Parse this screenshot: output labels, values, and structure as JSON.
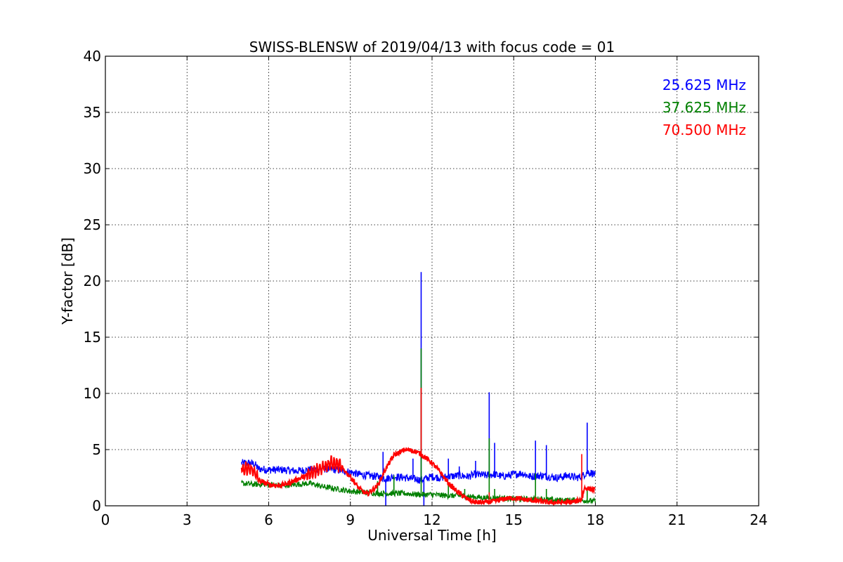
{
  "chart_data": {
    "type": "line",
    "title": "SWISS-BLENSW of 2019/04/13 with focus code = 01",
    "xlabel": "Universal Time [h]",
    "ylabel": "Y-factor [dB]",
    "xlim": [
      0,
      24
    ],
    "ylim": [
      0,
      40
    ],
    "xticks": [
      0,
      3,
      6,
      9,
      12,
      15,
      18,
      21,
      24
    ],
    "yticks": [
      0,
      5,
      10,
      15,
      20,
      25,
      30,
      35,
      40
    ],
    "grid": true,
    "legend_position": "top-right",
    "series": [
      {
        "name": "25.625 MHz",
        "color": "#0000ff",
        "points": [
          [
            5.0,
            3.8
          ],
          [
            5.3,
            3.8
          ],
          [
            5.5,
            3.7
          ],
          [
            5.6,
            3.3
          ],
          [
            6.0,
            3.2
          ],
          [
            6.5,
            3.2
          ],
          [
            7.0,
            3.1
          ],
          [
            7.5,
            3.2
          ],
          [
            8.0,
            3.3
          ],
          [
            8.5,
            3.2
          ],
          [
            9.0,
            3.0
          ],
          [
            9.3,
            2.8
          ],
          [
            9.6,
            2.7
          ],
          [
            10.0,
            2.6
          ],
          [
            10.3,
            2.4
          ],
          [
            10.6,
            2.6
          ],
          [
            11.0,
            2.5
          ],
          [
            11.3,
            2.4
          ],
          [
            11.6,
            2.3
          ],
          [
            12.0,
            2.6
          ],
          [
            12.3,
            2.5
          ],
          [
            12.6,
            2.6
          ],
          [
            13.0,
            2.7
          ],
          [
            13.3,
            2.6
          ],
          [
            13.6,
            2.8
          ],
          [
            14.0,
            2.7
          ],
          [
            14.3,
            2.8
          ],
          [
            14.6,
            2.6
          ],
          [
            15.0,
            2.8
          ],
          [
            15.3,
            2.9
          ],
          [
            15.6,
            2.6
          ],
          [
            16.0,
            2.7
          ],
          [
            16.3,
            2.6
          ],
          [
            16.6,
            2.5
          ],
          [
            17.0,
            2.7
          ],
          [
            17.3,
            2.5
          ],
          [
            17.5,
            2.6
          ],
          [
            17.7,
            3.0
          ],
          [
            17.9,
            2.9
          ],
          [
            18.0,
            2.7
          ]
        ],
        "spikes": [
          [
            10.2,
            4.8
          ],
          [
            10.3,
            0.0
          ],
          [
            11.3,
            4.2
          ],
          [
            11.6,
            20.8
          ],
          [
            11.7,
            0.0
          ],
          [
            12.6,
            4.2
          ],
          [
            13.0,
            3.5
          ],
          [
            13.6,
            4.0
          ],
          [
            14.1,
            10.1
          ],
          [
            14.3,
            5.6
          ],
          [
            15.8,
            5.8
          ],
          [
            16.2,
            5.4
          ],
          [
            17.7,
            7.4
          ]
        ]
      },
      {
        "name": "37.625 MHz",
        "color": "#008000",
        "points": [
          [
            5.0,
            2.0
          ],
          [
            5.5,
            1.9
          ],
          [
            6.0,
            1.9
          ],
          [
            6.5,
            1.8
          ],
          [
            7.0,
            1.9
          ],
          [
            7.5,
            2.0
          ],
          [
            8.0,
            1.7
          ],
          [
            8.5,
            1.5
          ],
          [
            9.0,
            1.3
          ],
          [
            9.5,
            1.2
          ],
          [
            10.0,
            1.1
          ],
          [
            10.5,
            1.1
          ],
          [
            11.0,
            1.1
          ],
          [
            11.5,
            1.0
          ],
          [
            12.0,
            1.0
          ],
          [
            12.5,
            0.9
          ],
          [
            13.0,
            0.9
          ],
          [
            13.5,
            0.8
          ],
          [
            14.0,
            0.7
          ],
          [
            14.5,
            0.7
          ],
          [
            15.0,
            0.6
          ],
          [
            15.5,
            0.6
          ],
          [
            16.0,
            0.6
          ],
          [
            16.5,
            0.5
          ],
          [
            17.0,
            0.5
          ],
          [
            17.5,
            0.5
          ],
          [
            18.0,
            0.4
          ]
        ],
        "spikes": [
          [
            10.0,
            2.2
          ],
          [
            10.6,
            2.7
          ],
          [
            11.6,
            14.0
          ],
          [
            12.6,
            1.9
          ],
          [
            13.2,
            1.5
          ],
          [
            14.1,
            6.0
          ],
          [
            14.3,
            1.5
          ],
          [
            15.8,
            2.9
          ],
          [
            16.2,
            1.5
          ],
          [
            17.7,
            1.5
          ]
        ]
      },
      {
        "name": "70.500 MHz",
        "color": "#ff0000",
        "points": [
          [
            5.0,
            3.2
          ],
          [
            5.3,
            3.3
          ],
          [
            5.5,
            3.0
          ],
          [
            5.6,
            2.3
          ],
          [
            6.0,
            1.9
          ],
          [
            6.3,
            1.8
          ],
          [
            6.6,
            1.9
          ],
          [
            7.0,
            2.3
          ],
          [
            7.5,
            2.8
          ],
          [
            8.0,
            3.5
          ],
          [
            8.3,
            3.8
          ],
          [
            8.6,
            3.6
          ],
          [
            9.0,
            2.6
          ],
          [
            9.3,
            1.6
          ],
          [
            9.6,
            1.0
          ],
          [
            10.0,
            1.8
          ],
          [
            10.3,
            3.3
          ],
          [
            10.6,
            4.5
          ],
          [
            11.0,
            5.0
          ],
          [
            11.3,
            4.9
          ],
          [
            11.6,
            4.6
          ],
          [
            12.0,
            3.8
          ],
          [
            12.3,
            3.0
          ],
          [
            12.6,
            2.0
          ],
          [
            13.0,
            1.1
          ],
          [
            13.3,
            0.6
          ],
          [
            13.6,
            0.3
          ],
          [
            14.0,
            0.3
          ],
          [
            14.3,
            0.4
          ],
          [
            14.6,
            0.6
          ],
          [
            15.0,
            0.7
          ],
          [
            15.3,
            0.6
          ],
          [
            15.6,
            0.5
          ],
          [
            16.0,
            0.4
          ],
          [
            16.3,
            0.3
          ],
          [
            16.6,
            0.3
          ],
          [
            17.0,
            0.3
          ],
          [
            17.3,
            0.4
          ],
          [
            17.5,
            0.6
          ],
          [
            17.6,
            1.6
          ],
          [
            17.8,
            1.5
          ],
          [
            18.0,
            1.4
          ]
        ],
        "spikes": [
          [
            11.6,
            10.5
          ],
          [
            14.1,
            1.2
          ],
          [
            17.5,
            4.6
          ]
        ]
      }
    ]
  }
}
